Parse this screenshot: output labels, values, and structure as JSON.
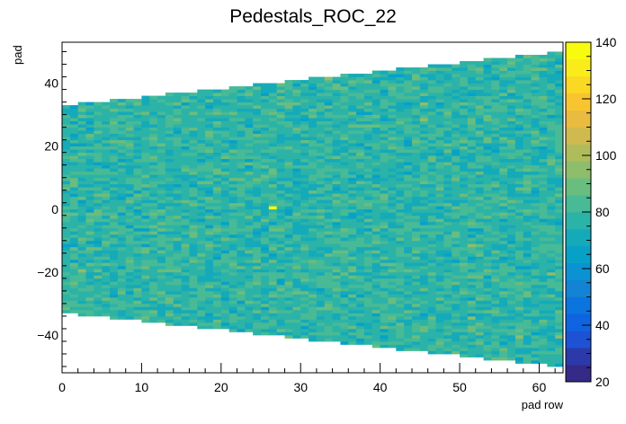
{
  "chart_data": {
    "type": "heatmap",
    "title": "Pedestals_ROC_22",
    "xlabel": "pad row",
    "ylabel": "pad",
    "xlim": [
      0,
      63
    ],
    "ylim": [
      -52,
      53
    ],
    "zlim": [
      20,
      140
    ],
    "x_ticks": [
      0,
      10,
      20,
      30,
      40,
      50,
      60
    ],
    "y_ticks": [
      -40,
      -20,
      0,
      20,
      40
    ],
    "z_ticks": [
      20,
      40,
      60,
      80,
      100,
      120,
      140
    ],
    "rows": 63,
    "pads_first_row": 66,
    "pads_last_row": 100,
    "typical_value": 78,
    "value_spread": 9,
    "outlier": {
      "row": 26,
      "pad": 0,
      "value": 140
    },
    "colormap": "kBird",
    "palette": [
      "#352a87",
      "#2b3aa8",
      "#1d52d4",
      "#0e64e1",
      "#0b74de",
      "#1383d4",
      "#0b92d2",
      "#07a1c8",
      "#15aab9",
      "#2cb3a8",
      "#48ba95",
      "#69bd7f",
      "#8ebd6c",
      "#b0bc5c",
      "#d0ba4f",
      "#e9bb3f",
      "#f8c530",
      "#fbd823",
      "#f9ec1a",
      "#f9fb0e"
    ],
    "grid": false,
    "legend": "none"
  }
}
